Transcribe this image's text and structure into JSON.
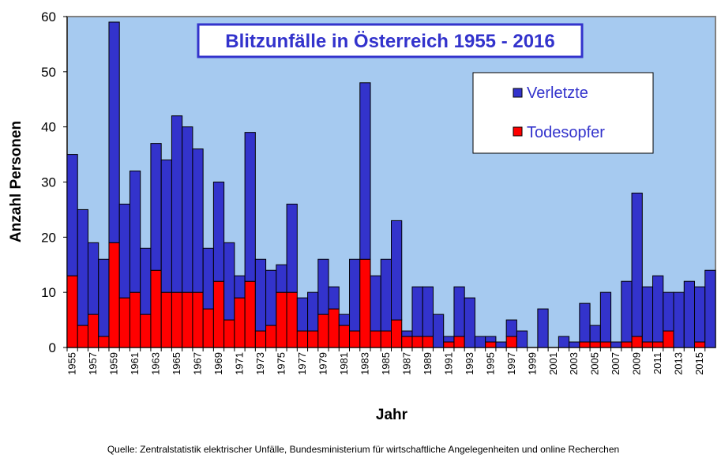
{
  "chart_data": {
    "type": "bar",
    "stacked": true,
    "title": "Blitzunfälle in Österreich 1955 - 2016",
    "xlabel": "Jahr",
    "ylabel": "Anzahl Personen",
    "ylim": [
      0,
      60
    ],
    "yticks": [
      0,
      10,
      20,
      30,
      40,
      50,
      60
    ],
    "grid": false,
    "legend": "top-right",
    "source": "Quelle: Zentralstatistik elektrischer Unfälle, Bundesministerium für wirtschaftliche Angelegenheiten und online Recherchen",
    "categories": [
      1955,
      1956,
      1957,
      1958,
      1959,
      1960,
      1961,
      1962,
      1963,
      1964,
      1965,
      1966,
      1967,
      1968,
      1969,
      1970,
      1971,
      1972,
      1973,
      1974,
      1975,
      1976,
      1977,
      1978,
      1979,
      1980,
      1981,
      1982,
      1983,
      1984,
      1985,
      1986,
      1987,
      1988,
      1989,
      1990,
      1991,
      1992,
      1993,
      1994,
      1995,
      1996,
      1997,
      1998,
      1999,
      2000,
      2001,
      2002,
      2003,
      2004,
      2005,
      2006,
      2007,
      2008,
      2009,
      2010,
      2011,
      2012,
      2013,
      2014,
      2015,
      2016
    ],
    "series": [
      {
        "name": "Todesopfer",
        "color": "#ff0000",
        "values": [
          13,
          4,
          6,
          2,
          19,
          9,
          10,
          6,
          14,
          10,
          10,
          10,
          10,
          7,
          12,
          5,
          9,
          12,
          3,
          4,
          10,
          10,
          3,
          3,
          6,
          7,
          4,
          3,
          16,
          3,
          3,
          5,
          2,
          2,
          2,
          0,
          1,
          2,
          0,
          0,
          1,
          0,
          2,
          0,
          0,
          0,
          0,
          0,
          0,
          1,
          1,
          1,
          0,
          1,
          2,
          1,
          1,
          3,
          0,
          0,
          1,
          0
        ]
      },
      {
        "name": "Verletzte",
        "color": "#3333cc",
        "values": [
          22,
          21,
          13,
          14,
          40,
          17,
          22,
          12,
          23,
          24,
          32,
          30,
          26,
          11,
          18,
          14,
          4,
          27,
          13,
          10,
          5,
          16,
          6,
          7,
          10,
          4,
          2,
          13,
          32,
          10,
          13,
          18,
          1,
          9,
          9,
          6,
          1,
          9,
          9,
          2,
          1,
          1,
          3,
          3,
          0,
          7,
          0,
          2,
          1,
          7,
          3,
          9,
          1,
          11,
          26,
          10,
          12,
          7,
          10,
          12,
          10,
          14
        ]
      }
    ]
  }
}
